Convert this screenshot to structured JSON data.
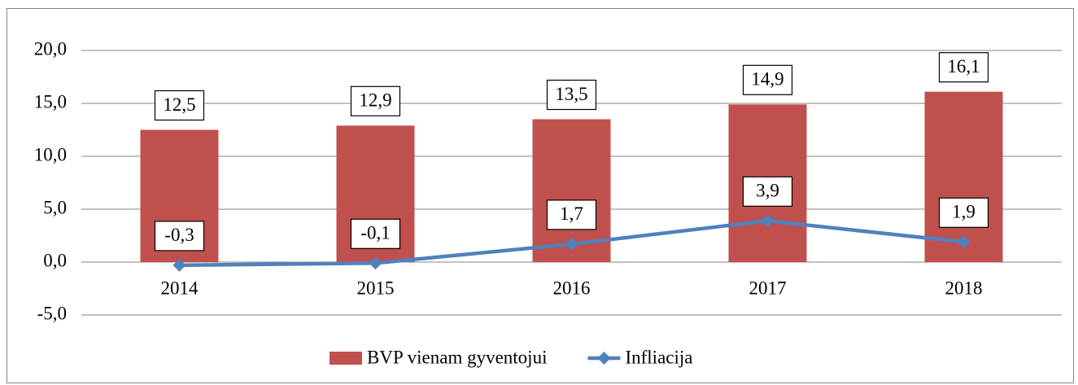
{
  "chart_data": {
    "type": "bar",
    "categories": [
      "2014",
      "2015",
      "2016",
      "2017",
      "2018"
    ],
    "series": [
      {
        "name": "BVP vienam gyventojui",
        "type": "bar",
        "color": "#c0504d",
        "values": [
          12.5,
          12.9,
          13.5,
          14.9,
          16.1
        ],
        "value_labels": [
          "12,5",
          "12,9",
          "13,5",
          "14,9",
          "16,1"
        ]
      },
      {
        "name": "Infliacija",
        "type": "line",
        "color": "#4f81bd",
        "values": [
          -0.3,
          -0.1,
          1.7,
          3.9,
          1.9
        ],
        "value_labels": [
          "-0,3",
          "-0,1",
          "1,7",
          "3,9",
          "1,9"
        ]
      }
    ],
    "ylim": [
      -5,
      20
    ],
    "yticks": [
      {
        "value": -5,
        "label": "-5,0"
      },
      {
        "value": 0,
        "label": "0,0"
      },
      {
        "value": 5,
        "label": "5,0"
      },
      {
        "value": 10,
        "label": "10,0"
      },
      {
        "value": 15,
        "label": "15,0"
      },
      {
        "value": 20,
        "label": "20,0"
      }
    ],
    "grid": true,
    "legend": "bottom"
  }
}
